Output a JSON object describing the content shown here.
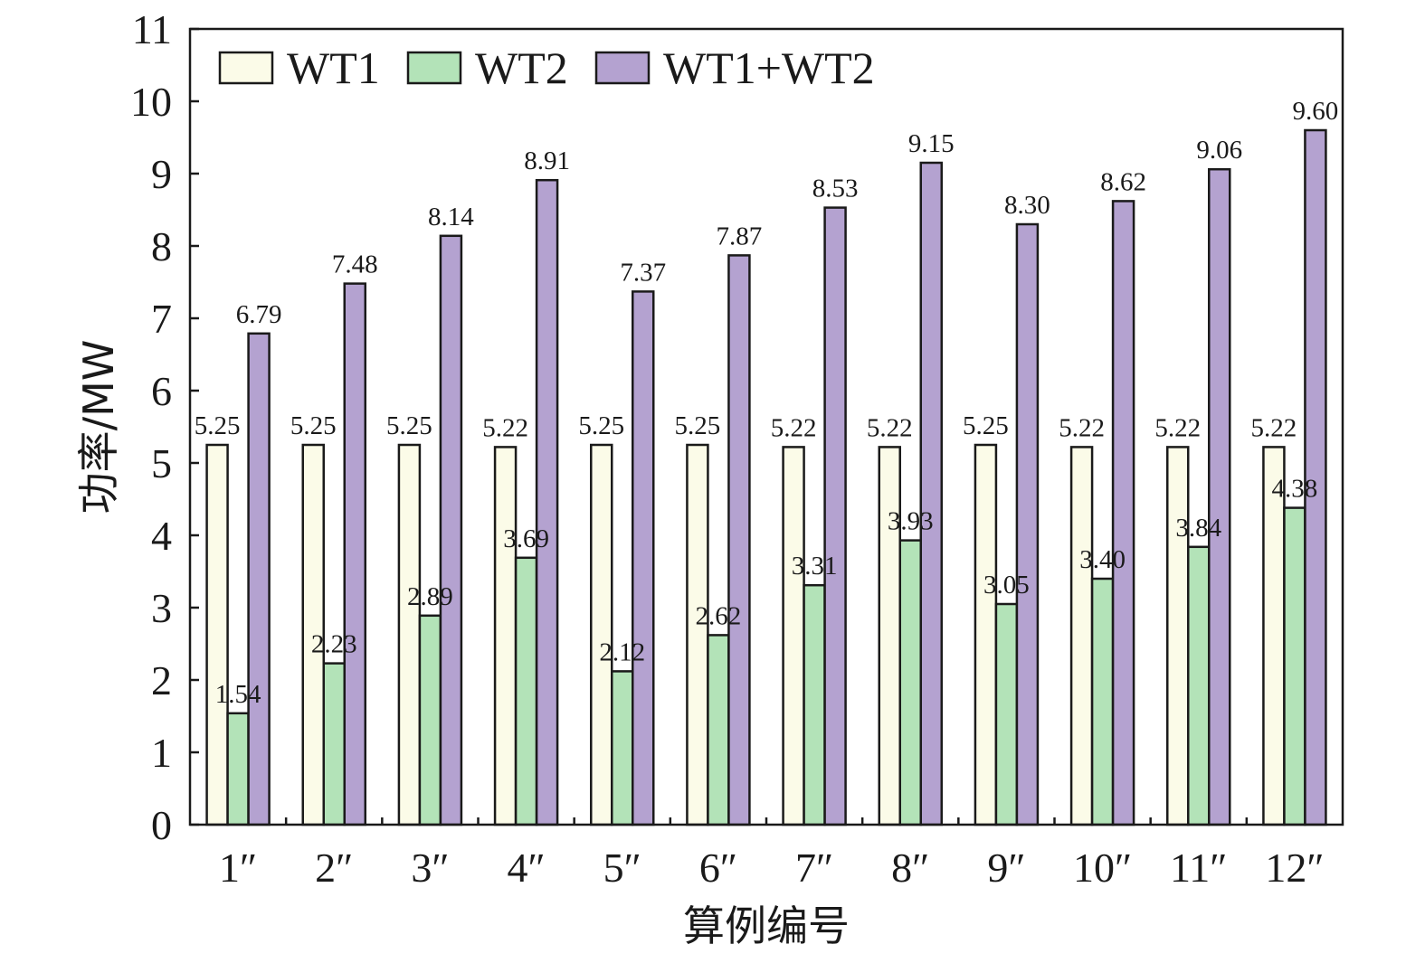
{
  "chart_data": {
    "type": "bar",
    "categories": [
      "1″",
      "2″",
      "3″",
      "4″",
      "5″",
      "6″",
      "7″",
      "8″",
      "9″",
      "10″",
      "11″",
      "12″"
    ],
    "series": [
      {
        "name": "WT1",
        "color": "#fbfbe8",
        "values": [
          5.25,
          5.25,
          5.25,
          5.22,
          5.25,
          5.25,
          5.22,
          5.22,
          5.25,
          5.22,
          5.22,
          5.22
        ]
      },
      {
        "name": "WT2",
        "color": "#b3e3b8",
        "values": [
          1.54,
          2.23,
          2.89,
          3.69,
          2.12,
          2.62,
          3.31,
          3.93,
          3.05,
          3.4,
          3.84,
          4.38
        ]
      },
      {
        "name": "WT1+WT2",
        "color": "#b4a2d0",
        "values": [
          6.79,
          7.48,
          8.14,
          8.91,
          7.37,
          7.87,
          8.53,
          9.15,
          8.3,
          8.62,
          9.06,
          9.6
        ]
      }
    ],
    "data_labels": [
      [
        "5.25",
        "5.25",
        "5.25",
        "5.22",
        "5.25",
        "5.25",
        "5.22",
        "5.22",
        "5.25",
        "5.22",
        "5.22",
        "5.22"
      ],
      [
        "1.54",
        "2.23",
        "2.89",
        "3.69",
        "2.12",
        "2.62",
        "3.31",
        "3.93",
        "3.05",
        "3.40",
        "3.84",
        "4.38"
      ],
      [
        "6.79",
        "7.48",
        "8.14",
        "8.91",
        "7.37",
        "7.87",
        "8.53",
        "9.15",
        "8.30",
        "8.62",
        "9.06",
        "9.60"
      ]
    ],
    "xlabel": "算例编号",
    "ylabel": "功率/MW",
    "ylim": [
      0,
      11
    ],
    "yticks": [
      0,
      1,
      2,
      3,
      4,
      5,
      6,
      7,
      8,
      9,
      10,
      11
    ],
    "ytick_labels": [
      "0",
      "1",
      "2",
      "3",
      "4",
      "5",
      "6",
      "7",
      "8",
      "9",
      "10",
      "11"
    ],
    "grid": false,
    "legend_position": "top-left"
  }
}
